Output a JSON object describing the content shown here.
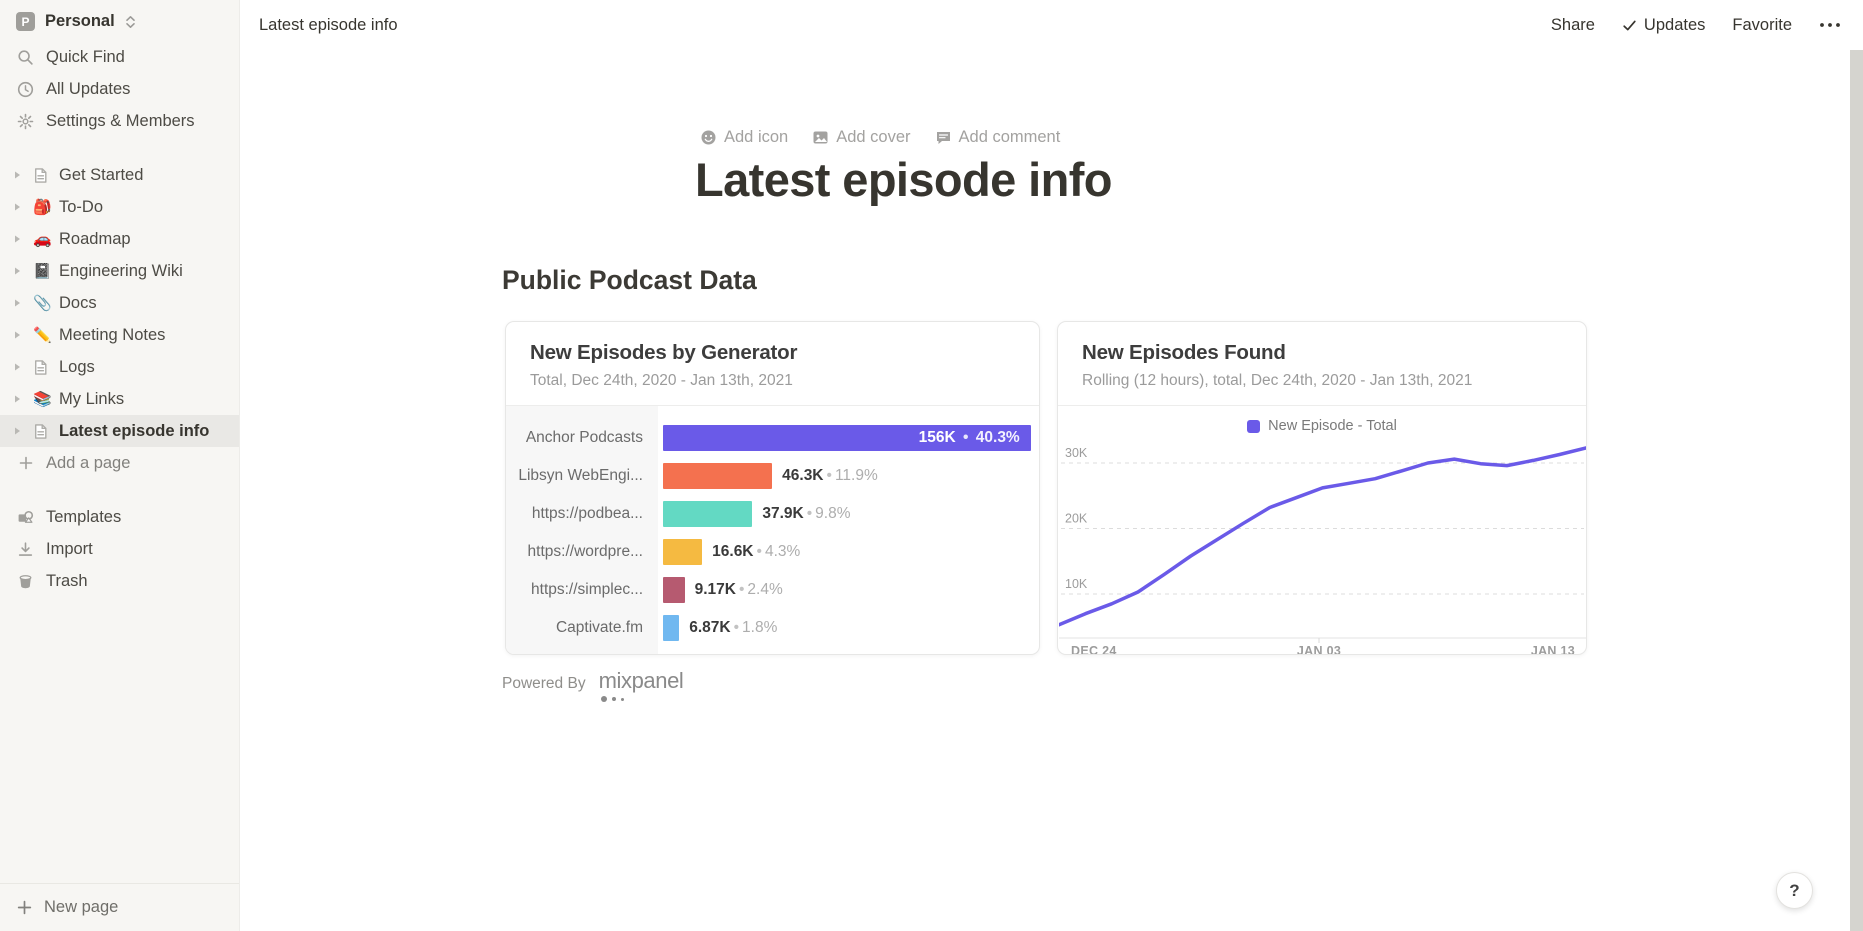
{
  "workspace": {
    "initial": "P",
    "name": "Personal"
  },
  "topbar": {
    "breadcrumb": "Latest episode info",
    "share": "Share",
    "updates": "Updates",
    "favorite": "Favorite"
  },
  "sidebar": {
    "top_items": [
      {
        "icon": "search-icon",
        "label": "Quick Find"
      },
      {
        "icon": "clock-icon",
        "label": "All Updates"
      },
      {
        "icon": "gear-icon",
        "label": "Settings & Members"
      }
    ],
    "pages": [
      {
        "label": "Get Started",
        "icon": "doc"
      },
      {
        "label": "To-Do",
        "icon": "emoji",
        "emoji": "🎒"
      },
      {
        "label": "Roadmap",
        "icon": "emoji",
        "emoji": "🚗"
      },
      {
        "label": "Engineering Wiki",
        "icon": "emoji",
        "emoji": "📓"
      },
      {
        "label": "Docs",
        "icon": "emoji",
        "emoji": "📎"
      },
      {
        "label": "Meeting Notes",
        "icon": "emoji",
        "emoji": "✏️"
      },
      {
        "label": "Logs",
        "icon": "doc"
      },
      {
        "label": "My Links",
        "icon": "emoji",
        "emoji": "📚"
      },
      {
        "label": "Latest episode info",
        "icon": "doc",
        "selected": true
      }
    ],
    "add_page": "Add a page",
    "bottom_items": [
      {
        "icon": "templates-icon",
        "label": "Templates"
      },
      {
        "icon": "import-icon",
        "label": "Import"
      },
      {
        "icon": "trash-icon",
        "label": "Trash"
      }
    ],
    "new_page": "New page"
  },
  "page": {
    "add_icon": "Add icon",
    "add_cover": "Add cover",
    "add_comment": "Add comment",
    "title": "Latest episode info",
    "section_heading": "Public Podcast Data",
    "powered_by": "Powered By",
    "brand": "mixpanel",
    "help": "?"
  },
  "chart_data": [
    {
      "type": "bar",
      "orientation": "horizontal",
      "title": "New Episodes by Generator",
      "subtitle": "Total, Dec 24th, 2020 - Jan 13th, 2021",
      "categories": [
        "Anchor Podcasts",
        "Libsyn WebEngi...",
        "https://podbea...",
        "https://wordpre...",
        "https://simplec...",
        "Captivate.fm"
      ],
      "values": [
        156000,
        46300,
        37900,
        16600,
        9170,
        6870
      ],
      "value_labels": [
        "156K",
        "46.3K",
        "37.9K",
        "16.6K",
        "9.17K",
        "6.87K"
      ],
      "percent_labels": [
        "40.3%",
        "11.9%",
        "9.8%",
        "4.3%",
        "2.4%",
        "1.8%"
      ],
      "bar_colors": [
        "#6a5ae8",
        "#f4714f",
        "#63d9c3",
        "#f5ba41",
        "#b65a70",
        "#70b8f0"
      ],
      "separator": "•"
    },
    {
      "type": "line",
      "title": "New Episodes Found",
      "subtitle": "Rolling (12 hours), total, Dec 24th, 2020 - Jan 13th, 2021",
      "legend": [
        {
          "label": "New Episode - Total",
          "color": "#6a5ae8"
        }
      ],
      "line_color": "#6a5ae8",
      "x_ticks": [
        "DEC 24",
        "JAN 03",
        "JAN 13"
      ],
      "y_ticks": [
        {
          "label": "10K",
          "value": 10000
        },
        {
          "label": "20K",
          "value": 20000
        },
        {
          "label": "30K",
          "value": 30000
        }
      ],
      "ylim": [
        0,
        34200
      ],
      "x_range_days": 20,
      "series": [
        {
          "name": "New Episode - Total",
          "x_days_from_dec24": [
            0,
            1,
            2,
            3,
            4,
            5,
            6,
            7,
            8,
            9,
            10,
            11,
            12,
            13,
            14,
            15,
            16,
            17,
            18,
            19,
            20
          ],
          "values": [
            5300,
            7000,
            8500,
            10300,
            13000,
            15800,
            18300,
            20800,
            23200,
            24700,
            26200,
            26900,
            27600,
            28800,
            30000,
            30600,
            29900,
            29600,
            30400,
            31300,
            32300
          ]
        }
      ],
      "grid": "dashed-horizontal",
      "legend_position": "top-center"
    }
  ]
}
